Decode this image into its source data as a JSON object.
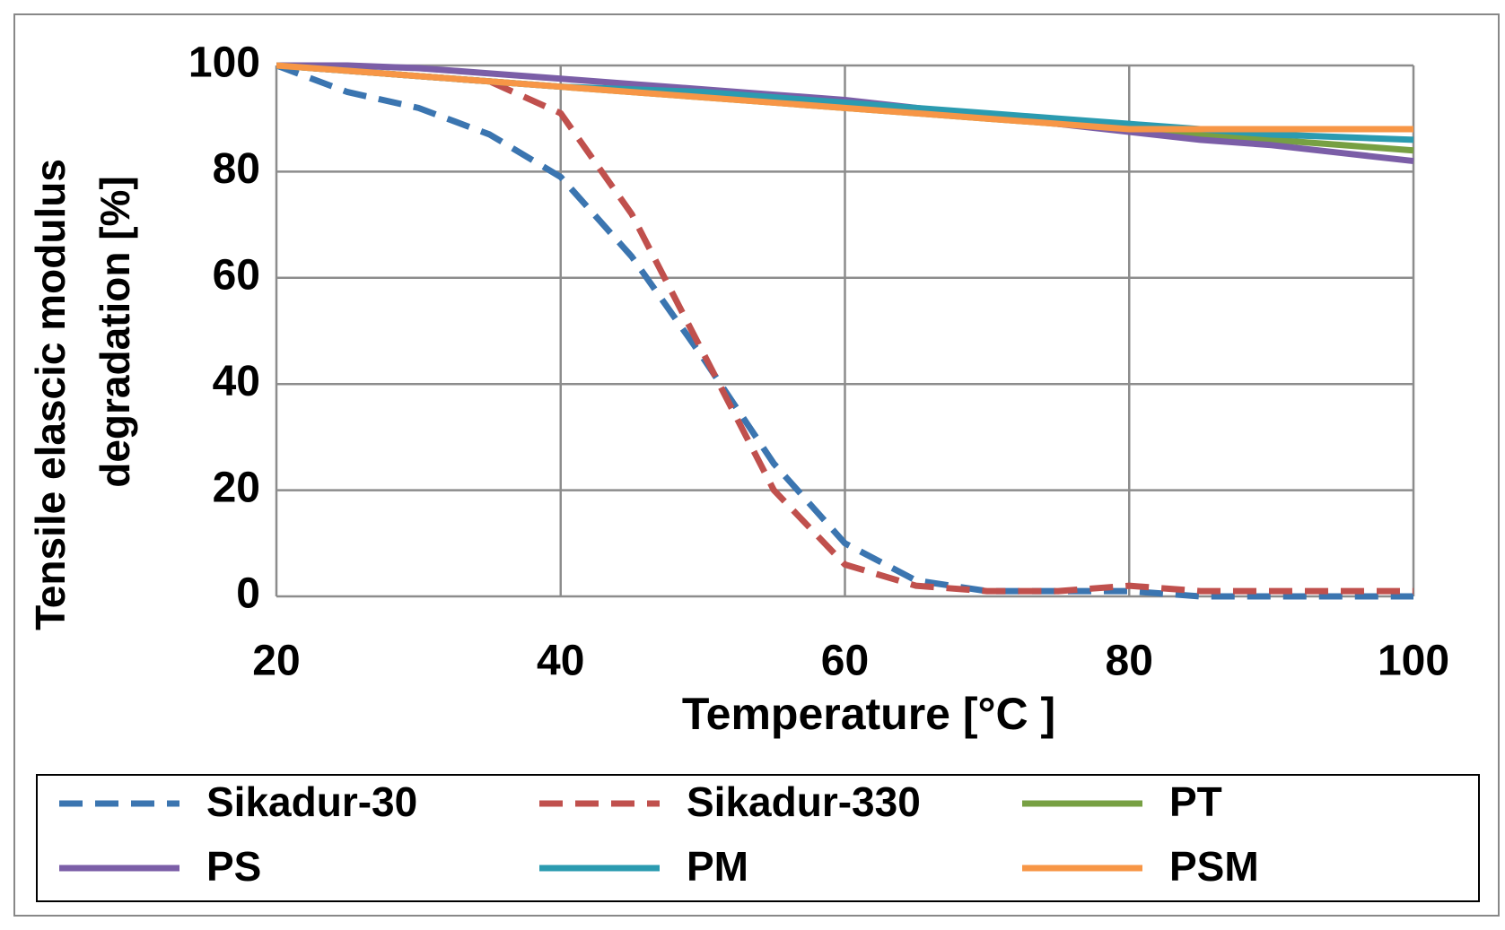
{
  "chart_data": {
    "type": "line",
    "x_label": "Temperature [°C ]",
    "y_label": [
      "Tensile elascic modulus",
      "degradation [%]"
    ],
    "x": [
      20,
      25,
      30,
      35,
      40,
      45,
      50,
      55,
      60,
      65,
      70,
      75,
      80,
      85,
      90,
      95,
      100
    ],
    "series": [
      {
        "name": "Sikadur-30",
        "color": "#3b75b0",
        "dashed": true,
        "values": [
          100,
          95,
          92,
          87,
          79,
          64,
          45,
          25,
          10,
          3,
          1,
          1,
          1,
          0,
          0,
          0,
          0
        ]
      },
      {
        "name": "Sikadur-330",
        "color": "#c0504d",
        "dashed": true,
        "values": [
          100,
          99,
          98,
          97,
          91,
          72,
          46,
          20,
          6,
          2,
          1,
          1,
          2,
          1,
          1,
          1,
          1
        ]
      },
      {
        "name": "PT",
        "color": "#77a043",
        "dashed": false,
        "values": [
          100,
          99,
          98,
          97,
          96,
          95,
          94,
          93,
          92,
          91,
          90,
          89,
          88,
          87,
          86,
          85,
          84
        ]
      },
      {
        "name": "PS",
        "color": "#7b5ea7",
        "dashed": false,
        "values": [
          100,
          100,
          99.5,
          98.5,
          97.5,
          96.5,
          95.5,
          94.5,
          93.5,
          92,
          90.5,
          89,
          87.5,
          86,
          85,
          83.5,
          82
        ]
      },
      {
        "name": "PM",
        "color": "#2b9bb0",
        "dashed": false,
        "values": [
          100,
          99,
          98,
          97,
          96,
          95.5,
          95,
          94,
          93,
          92,
          91,
          90,
          89,
          88,
          87,
          86.5,
          86
        ]
      },
      {
        "name": "PSM",
        "color": "#f79646",
        "dashed": false,
        "values": [
          100,
          99,
          98,
          97,
          96,
          95,
          94,
          93,
          92,
          91,
          90,
          89,
          88,
          88,
          88,
          88,
          88
        ]
      }
    ],
    "xlim": [
      20,
      100
    ],
    "xticks": [
      20,
      40,
      60,
      80,
      100
    ],
    "ylim": [
      0,
      100
    ],
    "yticks": [
      0,
      20,
      40,
      60,
      80,
      100
    ],
    "grid": true,
    "legend": "bottom"
  }
}
